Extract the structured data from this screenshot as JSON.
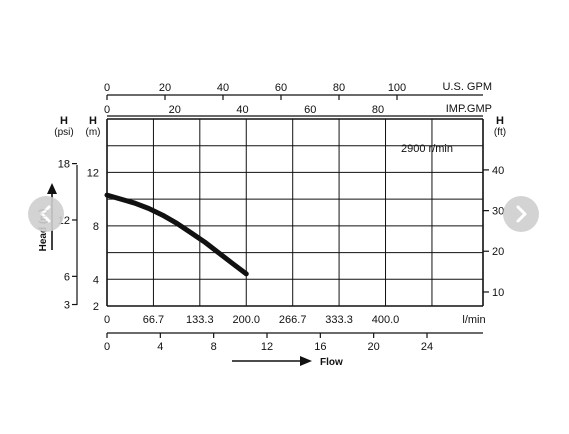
{
  "chart_data": {
    "type": "line",
    "series": [
      {
        "x": [
          0,
          20,
          40,
          60,
          80,
          100,
          120,
          140,
          160,
          180,
          200
        ],
        "y": [
          10.3,
          10.0,
          9.7,
          9.3,
          8.8,
          8.2,
          7.5,
          6.8,
          6.0,
          5.2,
          4.4
        ]
      }
    ],
    "xlim": [
      0,
      540
    ],
    "axes": {
      "h_m": {
        "label": "H",
        "unit": "(m)",
        "ticks": [
          2,
          4,
          6,
          8,
          10,
          12,
          14,
          16
        ],
        "tick_labels": [
          "2",
          "4",
          "",
          "8",
          "",
          "12",
          "",
          ""
        ],
        "range": [
          2,
          16
        ]
      },
      "h_psi": {
        "label": "H",
        "unit": "(psi)",
        "tick_labels": [
          "3",
          "6",
          "12",
          "18"
        ],
        "tick_m": [
          2.11,
          4.22,
          8.44,
          12.66
        ]
      },
      "h_ft": {
        "label": "H",
        "unit": "(ft)",
        "tick_labels": [
          "10",
          "20",
          "30",
          "40"
        ],
        "tick_m": [
          3.05,
          6.1,
          9.14,
          12.19
        ]
      },
      "flow_lmin": {
        "unit": "l/min",
        "tick_labels": [
          "0",
          "66.7",
          "133.3",
          "200.0",
          "266.7",
          "333.3",
          "400.0"
        ],
        "tick_values": [
          0,
          66.7,
          133.3,
          200,
          266.7,
          333.3,
          400
        ],
        "grid_values": [
          0,
          66.7,
          133.3,
          200,
          266.7,
          333.3,
          400,
          466.7,
          540
        ]
      },
      "flow_m3h": {
        "label": "Flow",
        "tick_labels": [
          "0",
          "4",
          "8",
          "12",
          "16",
          "20",
          "24"
        ],
        "tick_values": [
          0,
          4,
          8,
          12,
          16,
          20,
          24
        ]
      },
      "us_gpm": {
        "label": "U.S. GPM",
        "tick_labels": [
          "0",
          "20",
          "40",
          "60",
          "80",
          "100"
        ],
        "tick_values": [
          0,
          20,
          40,
          60,
          80,
          100
        ]
      },
      "imp_gpm": {
        "label": "IMP.GMP",
        "tick_labels": [
          "0",
          "20",
          "40",
          "60",
          "80"
        ],
        "tick_values": [
          0,
          20,
          40,
          60,
          80
        ]
      }
    },
    "speed_label": "2900 r/min",
    "head_axis_label": "Head (m)",
    "grid": true,
    "line_color": "#111111"
  },
  "nav": {
    "prev_icon": "chevron-left-icon",
    "next_icon": "chevron-right-icon",
    "button_color": "#cfcfcf"
  }
}
